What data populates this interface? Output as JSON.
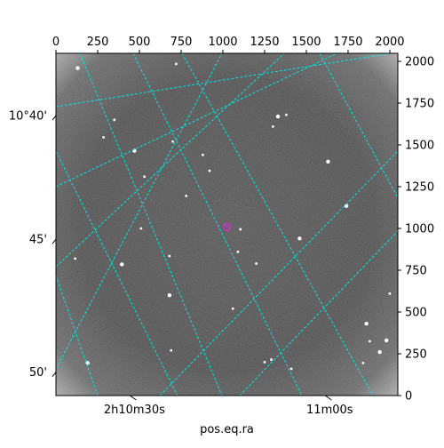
{
  "chart_data": {
    "type": "scatter",
    "description_kind": "astronomical image with WCS coordinate grid",
    "xlabel": "pos.eq.ra",
    "ylabel": "",
    "pixel_axes": {
      "top_x_ticks": [
        0,
        250,
        500,
        750,
        1000,
        1250,
        1500,
        1750,
        2000
      ],
      "right_y_ticks": [
        0,
        250,
        500,
        750,
        1000,
        1250,
        1500,
        1750,
        2000
      ],
      "xlim": [
        0,
        2048
      ],
      "ylim": [
        0,
        2048
      ]
    },
    "ra_tick_labels": [
      {
        "text": "2h10m30s",
        "x": 470
      },
      {
        "text": "11m00s",
        "x": 1640
      }
    ],
    "dec_tick_labels": [
      {
        "text": "10°40'",
        "y": 1675
      },
      {
        "text": "45'",
        "y": 935
      },
      {
        "text": "50'",
        "y": 140
      }
    ],
    "grid": true,
    "grid_color": "#00e5e5",
    "marker": {
      "x": 1025,
      "y": 1010,
      "color": "#cc33cc"
    },
    "image_cmap": "gray",
    "stars": [
      {
        "x": 130,
        "y": 1960
      },
      {
        "x": 720,
        "y": 1985
      },
      {
        "x": 1380,
        "y": 1680
      },
      {
        "x": 1330,
        "y": 1670
      },
      {
        "x": 1300,
        "y": 1610
      },
      {
        "x": 285,
        "y": 1545
      },
      {
        "x": 470,
        "y": 1465
      },
      {
        "x": 700,
        "y": 1520
      },
      {
        "x": 880,
        "y": 1440
      },
      {
        "x": 1630,
        "y": 1400
      },
      {
        "x": 920,
        "y": 1345
      },
      {
        "x": 780,
        "y": 1195
      },
      {
        "x": 1740,
        "y": 1135
      },
      {
        "x": 510,
        "y": 1000
      },
      {
        "x": 1105,
        "y": 995
      },
      {
        "x": 1460,
        "y": 940
      },
      {
        "x": 1090,
        "y": 860
      },
      {
        "x": 115,
        "y": 820
      },
      {
        "x": 395,
        "y": 785
      },
      {
        "x": 1200,
        "y": 790
      },
      {
        "x": 680,
        "y": 835
      },
      {
        "x": 680,
        "y": 600
      },
      {
        "x": 2000,
        "y": 610
      },
      {
        "x": 1060,
        "y": 520
      },
      {
        "x": 1860,
        "y": 430
      },
      {
        "x": 690,
        "y": 270
      },
      {
        "x": 1880,
        "y": 325
      },
      {
        "x": 1980,
        "y": 330
      },
      {
        "x": 1840,
        "y": 195
      },
      {
        "x": 1410,
        "y": 160
      },
      {
        "x": 190,
        "y": 195
      },
      {
        "x": 1250,
        "y": 200
      },
      {
        "x": 1290,
        "y": 215
      },
      {
        "x": 1940,
        "y": 260
      },
      {
        "x": 530,
        "y": 1310
      },
      {
        "x": 350,
        "y": 1650
      }
    ]
  }
}
